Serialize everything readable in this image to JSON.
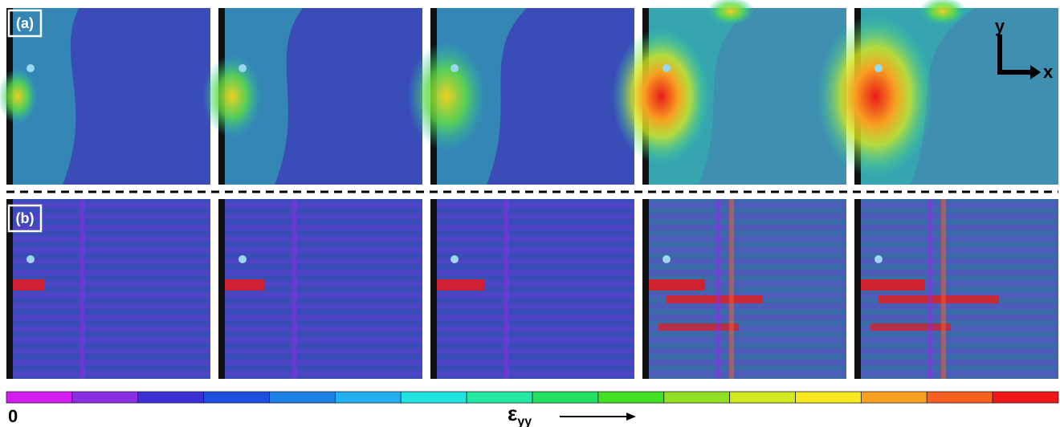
{
  "panels": {
    "a": {
      "label": "(a)"
    },
    "b": {
      "label": "(b)"
    }
  },
  "axes": {
    "y": "y",
    "x": "x"
  },
  "colorbar": {
    "min_label": "0",
    "symbol": "ε",
    "subscript": "yy",
    "colors": [
      "#d21cf2",
      "#8a2ee6",
      "#3b2fd8",
      "#1f4fe0",
      "#1f7fe8",
      "#22b0f0",
      "#22e2e2",
      "#22e8a2",
      "#22e062",
      "#42e022",
      "#92e022",
      "#d2e822",
      "#f8e822",
      "#f8a022",
      "#f86022",
      "#f01818"
    ]
  }
}
